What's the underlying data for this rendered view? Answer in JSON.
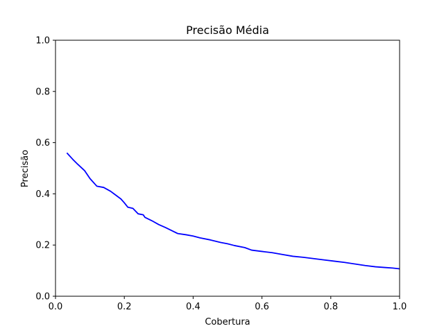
{
  "chart_data": {
    "type": "line",
    "title": "Precisão Média",
    "xlabel": "Cobertura",
    "ylabel": "Precisão",
    "xlim": [
      0.0,
      1.0
    ],
    "ylim": [
      0.0,
      1.0
    ],
    "xticks": [
      "0.0",
      "0.2",
      "0.4",
      "0.6",
      "0.8",
      "1.0"
    ],
    "yticks": [
      "0.0",
      "0.2",
      "0.4",
      "0.6",
      "0.8",
      "1.0"
    ],
    "grid": false,
    "series": [
      {
        "color": "#0000ff",
        "x": [
          0.033,
          0.05,
          0.065,
          0.085,
          0.1,
          0.12,
          0.14,
          0.16,
          0.17,
          0.19,
          0.2,
          0.21,
          0.225,
          0.24,
          0.255,
          0.26,
          0.28,
          0.3,
          0.32,
          0.34,
          0.355,
          0.38,
          0.4,
          0.42,
          0.45,
          0.48,
          0.5,
          0.52,
          0.55,
          0.57,
          0.6,
          0.63,
          0.66,
          0.69,
          0.72,
          0.75,
          0.78,
          0.81,
          0.84,
          0.87,
          0.9,
          0.93,
          0.96,
          0.98,
          1.0
        ],
        "y": [
          0.56,
          0.535,
          0.515,
          0.49,
          0.46,
          0.43,
          0.425,
          0.41,
          0.4,
          0.38,
          0.365,
          0.348,
          0.343,
          0.322,
          0.318,
          0.308,
          0.295,
          0.28,
          0.268,
          0.255,
          0.245,
          0.24,
          0.235,
          0.228,
          0.22,
          0.21,
          0.205,
          0.198,
          0.19,
          0.18,
          0.175,
          0.17,
          0.163,
          0.156,
          0.152,
          0.147,
          0.142,
          0.137,
          0.132,
          0.126,
          0.12,
          0.115,
          0.112,
          0.11,
          0.107
        ]
      }
    ]
  }
}
